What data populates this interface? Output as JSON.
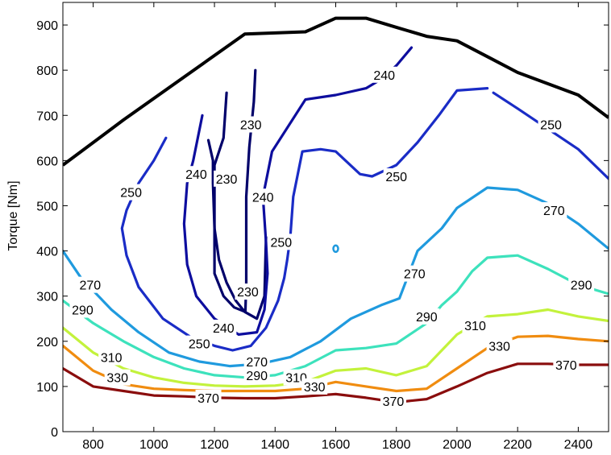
{
  "chart_data": {
    "type": "contour",
    "title": "",
    "xlabel": "",
    "ylabel": "Torque [Nm]",
    "xlim": [
      700,
      2500
    ],
    "ylim": [
      0,
      950
    ],
    "xticks": [
      800,
      1000,
      1200,
      1400,
      1600,
      1800,
      2000,
      2200,
      2400
    ],
    "yticks": [
      0,
      100,
      200,
      300,
      400,
      500,
      600,
      700,
      800,
      900
    ],
    "grid": false,
    "max_torque_curve": {
      "color": "#000000",
      "x": [
        700,
        900,
        1100,
        1300,
        1500,
        1600,
        1700,
        1800,
        1900,
        2000,
        2100,
        2200,
        2300,
        2400,
        2500
      ],
      "y": [
        590,
        690,
        785,
        880,
        885,
        915,
        915,
        895,
        875,
        865,
        830,
        795,
        770,
        745,
        695
      ]
    },
    "contours": [
      {
        "level": "230",
        "color": "#00006a",
        "segments": [
          {
            "x": [
              1180,
              1195,
              1195,
              1200,
              1215,
              1240,
              1270,
              1300,
              1340,
              1365,
              1370
            ],
            "y": [
              645,
              600,
              550,
              450,
              380,
              330,
              290,
              265,
              250,
              300,
              430
            ]
          },
          {
            "x": [
              1240,
              1230,
              1200,
              1200,
              1230,
              1265,
              1302,
              1305,
              1305,
              1315,
              1330,
              1335
            ],
            "y": [
              750,
              650,
              590,
              350,
              300,
              275,
              265,
              330,
              520,
              630,
              730,
              800
            ]
          }
        ],
        "labels": [
          {
            "text": "230",
            "x": 1240,
            "y": 560
          },
          {
            "text": "230",
            "x": 1320,
            "y": 680
          },
          {
            "text": "230",
            "x": 1310,
            "y": 310
          }
        ]
      },
      {
        "level": "240",
        "color": "#0d0d9e",
        "segments": [
          {
            "x": [
              1160,
              1130,
              1110,
              1100,
              1110,
              1140,
              1200,
              1280,
              1340,
              1365,
              1375,
              1370,
              1360,
              1390,
              1500,
              1600,
              1700,
              1750,
              1800,
              1850
            ],
            "y": [
              700,
              600,
              550,
              460,
              370,
              300,
              250,
              215,
              220,
              270,
              350,
              420,
              520,
              620,
              735,
              745,
              760,
              780,
              810,
              850
            ]
          }
        ],
        "labels": [
          {
            "text": "240",
            "x": 1140,
            "y": 570
          },
          {
            "text": "240",
            "x": 1360,
            "y": 520
          },
          {
            "text": "240",
            "x": 1230,
            "y": 230
          },
          {
            "text": "240",
            "x": 1760,
            "y": 790
          }
        ]
      },
      {
        "level": "250",
        "color": "#1a2cc6",
        "segments": [
          {
            "x": [
              1040,
              1000,
              950,
              910,
              895,
              910,
              950,
              1030,
              1120,
              1200,
              1260,
              1320,
              1370,
              1410,
              1430,
              1440,
              1450,
              1460,
              1490,
              1550,
              1600,
              1680,
              1720,
              1800,
              1870,
              1940,
              2000,
              2100
            ],
            "y": [
              650,
              600,
              550,
              490,
              450,
              390,
              320,
              250,
              210,
              190,
              180,
              190,
              230,
              290,
              340,
              380,
              430,
              520,
              620,
              625,
              620,
              570,
              565,
              590,
              640,
              700,
              755,
              760
            ]
          },
          {
            "x": [
              2120,
              2200,
              2300,
              2400,
              2500
            ],
            "y": [
              750,
              715,
              670,
              625,
              560
            ]
          }
        ],
        "labels": [
          {
            "text": "250",
            "x": 925,
            "y": 530
          },
          {
            "text": "250",
            "x": 1420,
            "y": 420
          },
          {
            "text": "250",
            "x": 1150,
            "y": 195
          },
          {
            "text": "250",
            "x": 1800,
            "y": 565
          },
          {
            "text": "250",
            "x": 2310,
            "y": 680
          }
        ]
      },
      {
        "level": "270",
        "color": "#1f9ade",
        "segments": [
          {
            "x": [
              700,
              760,
              860,
              950,
              1050,
              1150,
              1250,
              1350,
              1450,
              1550,
              1650,
              1750,
              1810,
              1830,
              1870,
              1950,
              2000,
              2100,
              2200,
              2300,
              2400,
              2500
            ],
            "y": [
              400,
              340,
              270,
              220,
              175,
              155,
              145,
              150,
              165,
              200,
              250,
              280,
              295,
              330,
              400,
              450,
              495,
              540,
              535,
              505,
              460,
              405
            ]
          }
        ],
        "labels": [
          {
            "text": "270",
            "x": 790,
            "y": 325
          },
          {
            "text": "270",
            "x": 1340,
            "y": 155
          },
          {
            "text": "270",
            "x": 1860,
            "y": 350
          },
          {
            "text": "270",
            "x": 2320,
            "y": 490
          }
        ]
      },
      {
        "level": "290",
        "color": "#3de2bc",
        "segments": [
          {
            "x": [
              700,
              800,
              900,
              1000,
              1100,
              1200,
              1300,
              1400,
              1500,
              1600,
              1700,
              1800,
              1900,
              1950,
              2000,
              2050,
              2100,
              2200,
              2300,
              2400,
              2500
            ],
            "y": [
              290,
              240,
              200,
              165,
              140,
              125,
              120,
              125,
              145,
              180,
              185,
              195,
              240,
              280,
              310,
              355,
              385,
              390,
              360,
              325,
              305
            ]
          }
        ],
        "labels": [
          {
            "text": "290",
            "x": 765,
            "y": 270
          },
          {
            "text": "290",
            "x": 1340,
            "y": 125
          },
          {
            "text": "290",
            "x": 1900,
            "y": 255
          },
          {
            "text": "290",
            "x": 2410,
            "y": 325
          }
        ]
      },
      {
        "level": "310",
        "color": "#c3f23c",
        "segments": [
          {
            "x": [
              700,
              800,
              900,
              1000,
              1100,
              1200,
              1300,
              1400,
              1500,
              1600,
              1700,
              1800,
              1900,
              2000,
              2100,
              2200,
              2300,
              2400,
              2500
            ],
            "y": [
              230,
              175,
              140,
              120,
              108,
              102,
              100,
              102,
              110,
              135,
              140,
              125,
              145,
              215,
              255,
              260,
              270,
              255,
              245
            ]
          }
        ],
        "labels": [
          {
            "text": "310",
            "x": 860,
            "y": 165
          },
          {
            "text": "310",
            "x": 1470,
            "y": 120
          },
          {
            "text": "310",
            "x": 2060,
            "y": 235
          }
        ]
      },
      {
        "level": "330",
        "color": "#f08c10",
        "segments": [
          {
            "x": [
              700,
              800,
              900,
              1000,
              1100,
              1200,
              1300,
              1400,
              1500,
              1600,
              1700,
              1800,
              1900,
              2000,
              2100,
              2200,
              2300,
              2400,
              2500
            ],
            "y": [
              190,
              135,
              105,
              95,
              92,
              90,
              90,
              90,
              95,
              110,
              100,
              90,
              95,
              140,
              185,
              210,
              212,
              205,
              200
            ]
          }
        ],
        "labels": [
          {
            "text": "330",
            "x": 880,
            "y": 120
          },
          {
            "text": "330",
            "x": 1530,
            "y": 100
          },
          {
            "text": "330",
            "x": 2140,
            "y": 190
          }
        ]
      },
      {
        "level": "370",
        "color": "#8a0d0d",
        "segments": [
          {
            "x": [
              700,
              800,
              900,
              1000,
              1100,
              1200,
              1300,
              1400,
              1500,
              1600,
              1700,
              1800,
              1900,
              2000,
              2100,
              2200,
              2300,
              2400,
              2500
            ],
            "y": [
              140,
              100,
              90,
              80,
              78,
              75,
              74,
              74,
              78,
              83,
              75,
              65,
              72,
              100,
              130,
              150,
              150,
              148,
              148
            ]
          }
        ],
        "labels": [
          {
            "text": "370",
            "x": 1180,
            "y": 75
          },
          {
            "text": "370",
            "x": 1790,
            "y": 68
          },
          {
            "text": "370",
            "x": 2360,
            "y": 148
          }
        ]
      }
    ],
    "spot": {
      "color": "#1f9ade",
      "x": 1600,
      "y": 405
    }
  }
}
